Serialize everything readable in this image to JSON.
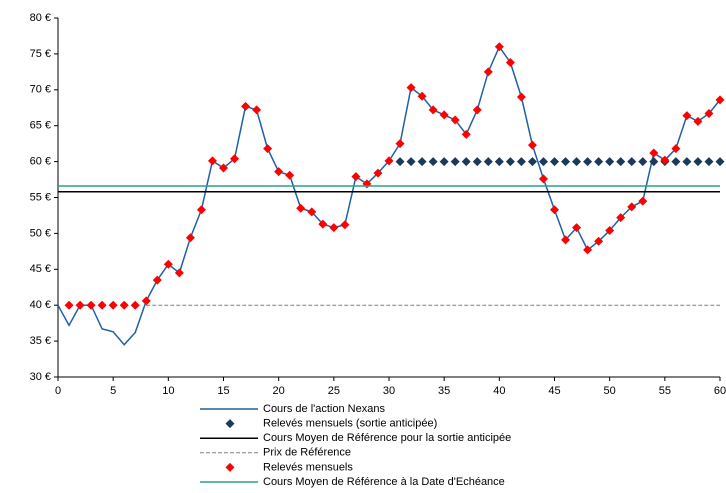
{
  "chart_data": {
    "type": "line",
    "xlim": [
      0,
      60
    ],
    "xticks": [
      0,
      5,
      10,
      15,
      20,
      25,
      30,
      35,
      40,
      45,
      50,
      55,
      60
    ],
    "ylim": [
      30,
      80
    ],
    "yticks": [
      {
        "value": 30,
        "label": "30 €"
      },
      {
        "value": 35,
        "label": "35 €"
      },
      {
        "value": 40,
        "label": "40 €"
      },
      {
        "value": 45,
        "label": "45 €"
      },
      {
        "value": 50,
        "label": "50 €"
      },
      {
        "value": 55,
        "label": "55 €"
      },
      {
        "value": 60,
        "label": "60 €"
      },
      {
        "value": 65,
        "label": "65 €"
      },
      {
        "value": 70,
        "label": "70 €"
      },
      {
        "value": 75,
        "label": "75 €"
      },
      {
        "value": 80,
        "label": "80 €"
      }
    ],
    "series": [
      {
        "name": "Cours de l'action Nexans",
        "color": "#1f5fa8",
        "style": "line",
        "x": [
          0,
          1,
          2,
          3,
          4,
          5,
          6,
          7,
          8,
          9,
          10,
          11,
          12,
          13,
          14,
          15,
          16,
          17,
          18,
          19,
          20,
          21,
          22,
          23,
          24,
          25,
          26,
          27,
          28,
          29,
          30,
          31,
          32,
          33,
          34,
          35,
          36,
          37,
          38,
          39,
          40,
          41,
          42,
          43,
          44,
          45,
          46,
          47,
          48,
          49,
          50,
          51,
          52,
          53,
          54,
          55,
          56,
          57,
          58,
          59,
          60
        ],
        "values": [
          40,
          37.2,
          40,
          40,
          36.7,
          36.3,
          34.5,
          36.2,
          40.6,
          43.5,
          45.7,
          44.5,
          49.4,
          53.3,
          60.1,
          59.1,
          60.4,
          67.7,
          67.2,
          61.8,
          58.6,
          58.1,
          53.5,
          53.0,
          51.3,
          50.8,
          51.2,
          57.9,
          56.9,
          58.4,
          60.1,
          62.5,
          70.3,
          69.1,
          67.2,
          66.5,
          65.8,
          63.8,
          67.2,
          72.5,
          76.0,
          73.8,
          69.0,
          62.3,
          57.6,
          53.3,
          49.1,
          50.8,
          47.7,
          48.9,
          50.4,
          52.2,
          53.7,
          54.5,
          61.2,
          60.2,
          61.8,
          66.4,
          65.6,
          66.7,
          68.6
        ]
      },
      {
        "name": "Relevés mensuels (sortie anticipée)",
        "color": "#1a3a5c",
        "style": "marker",
        "x": [
          31,
          32,
          33,
          34,
          35,
          36,
          37,
          38,
          39,
          40,
          41,
          42,
          43,
          44,
          45,
          46,
          47,
          48,
          49,
          50,
          51,
          52,
          53,
          54,
          55,
          56,
          57,
          58,
          59,
          60
        ],
        "values": [
          60,
          60,
          60,
          60,
          60,
          60,
          60,
          60,
          60,
          60,
          60,
          60,
          60,
          60,
          60,
          60,
          60,
          60,
          60,
          60,
          60,
          60,
          60,
          60,
          60,
          60,
          60,
          60,
          60,
          60
        ]
      },
      {
        "name": "Cours Moyen de Référence pour la sortie anticipée",
        "color": "#000000",
        "style": "line",
        "x": [
          0,
          60
        ],
        "values": [
          55.8,
          55.8
        ]
      },
      {
        "name": "Prix de Référence",
        "color": "#808080",
        "style": "dashed",
        "x": [
          8,
          60
        ],
        "values": [
          40,
          40
        ]
      },
      {
        "name": "Relevés mensuels",
        "color": "#ff0000",
        "style": "marker",
        "x": [
          1,
          2,
          3,
          4,
          5,
          6,
          7,
          8,
          9,
          10,
          11,
          12,
          13,
          14,
          15,
          16,
          17,
          18,
          19,
          20,
          21,
          22,
          23,
          24,
          25,
          26,
          27,
          28,
          29,
          30,
          31,
          32,
          33,
          34,
          35,
          36,
          37,
          38,
          39,
          40,
          41,
          42,
          43,
          44,
          45,
          46,
          47,
          48,
          49,
          50,
          51,
          52,
          53,
          54,
          55,
          56,
          57,
          58,
          59,
          60
        ],
        "values": [
          40,
          40,
          40,
          40,
          40,
          40,
          40,
          40.6,
          43.5,
          45.7,
          44.5,
          49.4,
          53.3,
          60.1,
          59.1,
          60.4,
          67.7,
          67.2,
          61.8,
          58.6,
          58.1,
          53.5,
          53.0,
          51.3,
          50.8,
          51.2,
          57.9,
          56.9,
          58.4,
          60.1,
          62.5,
          70.3,
          69.1,
          67.2,
          66.5,
          65.8,
          63.8,
          67.2,
          72.5,
          76.0,
          73.8,
          69.0,
          62.3,
          57.6,
          53.3,
          49.1,
          50.8,
          47.7,
          48.9,
          50.4,
          52.2,
          53.7,
          54.5,
          61.2,
          60.2,
          61.8,
          66.4,
          65.6,
          66.7,
          68.6
        ]
      },
      {
        "name": "Cours Moyen de Référence à la Date d'Echéance",
        "color": "#2aa08a",
        "style": "line",
        "x": [
          0,
          60
        ],
        "values": [
          56.6,
          56.6
        ]
      }
    ]
  }
}
